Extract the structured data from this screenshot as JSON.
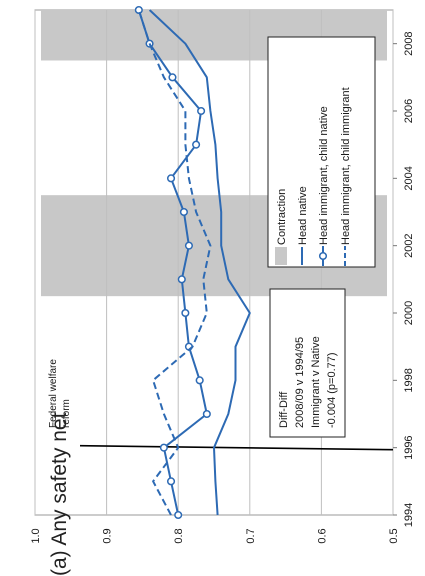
{
  "caption": "(a) Any safety net",
  "colors": {
    "line": "#2d6ab4",
    "shade": "#c8c8c8",
    "grid": "#bfbfbf",
    "reform": "#000000",
    "text": "#1a1a1a"
  },
  "chart_data": {
    "type": "line",
    "orientation": "rotated-90-ccw",
    "x": [
      1994,
      1995,
      1996,
      1997,
      1998,
      1999,
      2000,
      2001,
      2002,
      2003,
      2004,
      2005,
      2006,
      2007,
      2008,
      2009
    ],
    "xticks": [
      "1994",
      "1996",
      "1998",
      "2000",
      "2002",
      "2004",
      "2006",
      "2008"
    ],
    "yticks": [
      "0.5",
      "0.6",
      "0.7",
      "0.8",
      "0.9",
      "1.0"
    ],
    "xlim": [
      1994,
      2009
    ],
    "ylim": [
      0.5,
      1.0
    ],
    "grid": "horizontal",
    "contractions": [
      [
        2000.5,
        2003.5
      ],
      [
        2007.5,
        2009
      ]
    ],
    "reform_year": 1996,
    "reform_label": [
      "Federal welfare",
      "reform"
    ],
    "series": [
      {
        "name": "Head native",
        "style": "solid",
        "marker": false,
        "values": [
          0.745,
          0.748,
          0.75,
          0.73,
          0.72,
          0.72,
          0.7,
          0.73,
          0.74,
          0.74,
          0.745,
          0.748,
          0.755,
          0.76,
          0.79,
          0.84
        ]
      },
      {
        "name": "Head immigrant, child native",
        "style": "solid",
        "marker": true,
        "values": [
          0.8,
          0.81,
          0.82,
          0.76,
          0.77,
          0.785,
          0.79,
          0.795,
          0.785,
          0.792,
          0.81,
          0.775,
          0.768,
          0.808,
          0.84,
          0.855
        ]
      },
      {
        "name": "Head immigrant, child immigrant",
        "style": "dashed",
        "marker": false,
        "values": [
          0.81,
          0.835,
          0.8,
          0.82,
          0.835,
          0.78,
          0.76,
          0.765,
          0.755,
          0.775,
          0.785,
          0.79,
          0.79,
          0.82,
          0.84,
          0.855
        ]
      }
    ],
    "legend_items": [
      "Contraction",
      "Head native",
      "Head immigrant, child native",
      "Head immigrant, child immigrant"
    ],
    "annotation_lines": [
      "Diff-Diff",
      "2008/09 v 1994/95",
      "Immigrant v Native",
      "-0.004 (p=0.77)"
    ]
  }
}
